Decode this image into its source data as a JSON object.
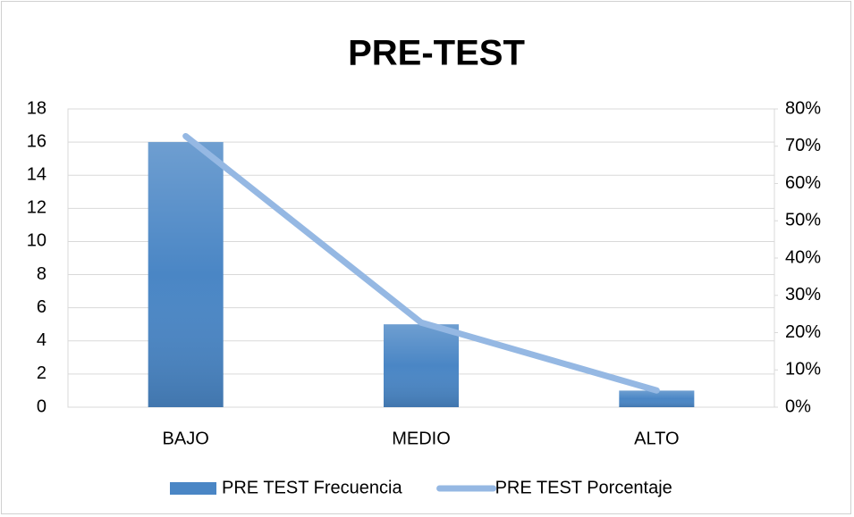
{
  "chart_data": {
    "type": "bar_line",
    "title": "PRE-TEST",
    "categories": [
      "BAJO",
      "MEDIO",
      "ALTO"
    ],
    "series": [
      {
        "name": "PRE TEST Frecuencia",
        "type": "bar",
        "color": "#4a86c5",
        "values": [
          16,
          5,
          1
        ]
      },
      {
        "name": "PRE TEST Porcentaje",
        "type": "line",
        "axis": "y2",
        "color": "#95b8e3",
        "values": [
          72.7,
          22.7,
          4.5
        ]
      }
    ],
    "ylim": [
      0,
      18
    ],
    "yticks": [
      0,
      2,
      4,
      6,
      8,
      10,
      12,
      14,
      16,
      18
    ],
    "y2lim": [
      0,
      80
    ],
    "y2ticks": [
      {
        "value": 0,
        "label": "0%"
      },
      {
        "value": 10,
        "label": "10%"
      },
      {
        "value": 20,
        "label": "20%"
      },
      {
        "value": 30,
        "label": "30%"
      },
      {
        "value": 40,
        "label": "40%"
      },
      {
        "value": 50,
        "label": "50%"
      },
      {
        "value": 60,
        "label": "60%"
      },
      {
        "value": 70,
        "label": "70%"
      },
      {
        "value": 80,
        "label": "80%"
      }
    ],
    "grid": true,
    "legend": "bottom"
  }
}
